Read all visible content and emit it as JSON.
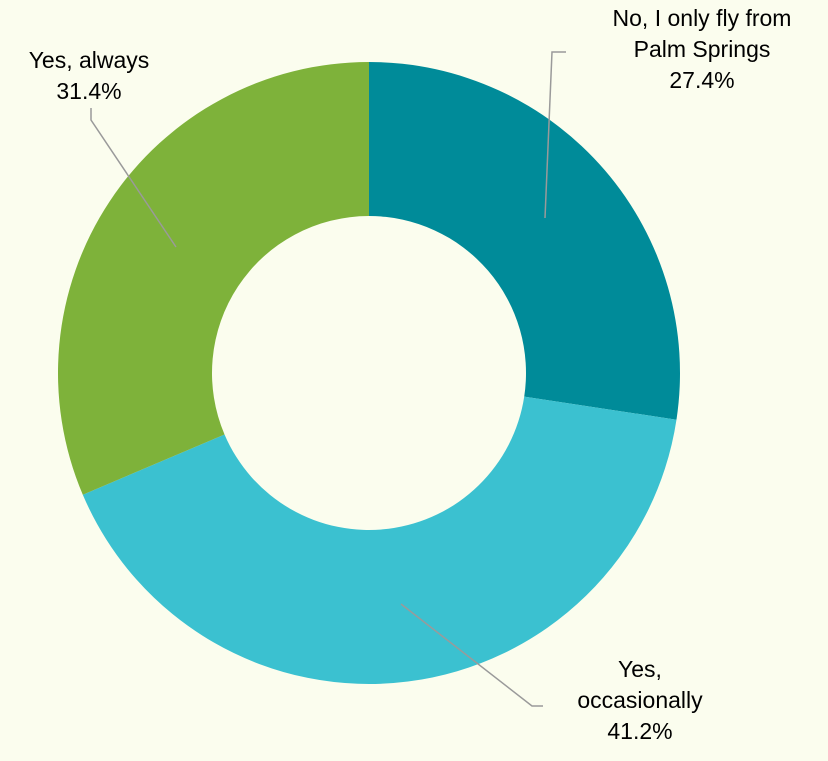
{
  "chart_data": {
    "type": "pie",
    "variant": "donut",
    "title": "",
    "slices": [
      {
        "label_lines": [
          "No, I only fly from",
          "Palm Springs"
        ],
        "percent_label": "27.4%",
        "value": 27.4,
        "color": "#008b99"
      },
      {
        "label_lines": [
          "Yes,",
          "occasionally"
        ],
        "percent_label": "41.2%",
        "value": 41.2,
        "color": "#3bc1d0"
      },
      {
        "label_lines": [
          "Yes, always"
        ],
        "percent_label": "31.4%",
        "value": 31.4,
        "color": "#7eb23a"
      }
    ],
    "background": "#fbfdee",
    "legend": "none",
    "data_labels": "outside with leader lines"
  }
}
